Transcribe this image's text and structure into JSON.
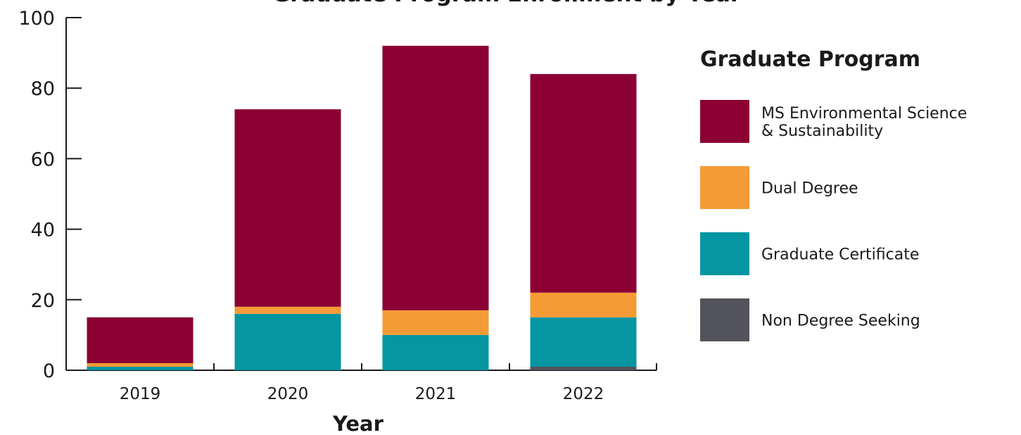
{
  "chart_data": {
    "type": "bar",
    "stacked": true,
    "title": "Graduate Program Enrollment by Year",
    "xlabel": "Year",
    "ylabel": "",
    "ylim": [
      0,
      100
    ],
    "yticks": [
      0,
      20,
      40,
      60,
      80,
      100
    ],
    "categories": [
      "2019",
      "2020",
      "2021",
      "2022"
    ],
    "series": [
      {
        "name": "Non Degree Seeking",
        "color": "#53535b",
        "values": [
          0,
          0,
          0,
          1
        ]
      },
      {
        "name": "Graduate Certificate",
        "color": "#0596a2",
        "values": [
          1,
          16,
          10,
          14
        ]
      },
      {
        "name": "Dual Degree",
        "color": "#f59b36",
        "values": [
          1,
          2,
          7,
          7
        ]
      },
      {
        "name": "MS Environmental Science & Sustainability",
        "color": "#8c0033",
        "values": [
          13,
          56,
          75,
          62
        ]
      }
    ],
    "legend": {
      "title": "Graduate Program",
      "position": "right",
      "items": [
        {
          "lines": [
            "MS Environmental Science",
            "& Sustainability"
          ],
          "color": "#8c0033"
        },
        {
          "lines": [
            "Dual Degree"
          ],
          "color": "#f59b36"
        },
        {
          "lines": [
            "Graduate Certificate"
          ],
          "color": "#0596a2"
        },
        {
          "lines": [
            "Non Degree Seeking"
          ],
          "color": "#53535b"
        }
      ]
    }
  }
}
